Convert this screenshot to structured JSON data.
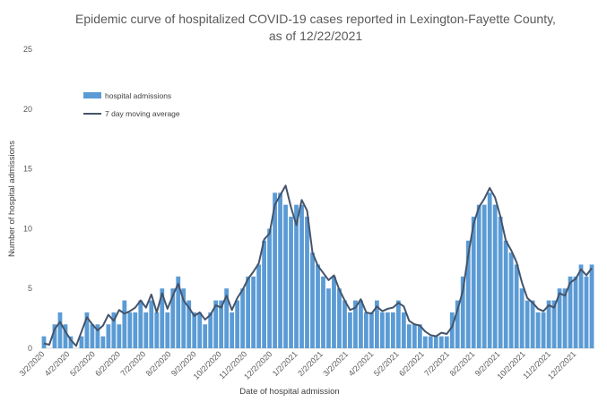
{
  "chart_data": {
    "type": "bar",
    "title_line1": "Epidemic curve of hospitalized COVID-19 cases reported in Lexington-Fayette County,",
    "title_line2": "as of 12/22/2021",
    "xlabel": "Date of hospital admission",
    "ylabel": "Number of hospital admissions",
    "ylim": [
      0,
      25
    ],
    "yticks": [
      "0",
      "5",
      "10",
      "15",
      "20",
      "25"
    ],
    "x_tick_labels": [
      "3/2/2020",
      "4/2/2020",
      "5/2/2020",
      "6/2/2020",
      "7/2/2020",
      "8/2/2020",
      "9/2/2020",
      "10/2/2020",
      "11/2/2020",
      "12/2/2020",
      "1/2/2021",
      "2/2/2021",
      "3/2/2021",
      "4/2/2021",
      "5/2/2021",
      "6/2/2021",
      "7/2/2021",
      "8/2/2021",
      "9/2/2021",
      "10/2/2021",
      "11/2/2021",
      "12/2/2021"
    ],
    "legend_placement": "upper-left",
    "colors": {
      "bars": "#5b9bd5",
      "line": "#44546a",
      "text": "#595959"
    },
    "series": [
      {
        "name": "hospital admissions",
        "type": "bar",
        "period": "weekly",
        "values": [
          1,
          0,
          2,
          3,
          2,
          1,
          0,
          1,
          3,
          2,
          2,
          1,
          2,
          3,
          2,
          4,
          3,
          3,
          4,
          3,
          4,
          3,
          5,
          3,
          5,
          6,
          5,
          4,
          3,
          3,
          2,
          3,
          4,
          4,
          5,
          3,
          4,
          5,
          6,
          6,
          7,
          9,
          10,
          13,
          13,
          12,
          11,
          12,
          12,
          11,
          8,
          7,
          6,
          5,
          6,
          5,
          4,
          3,
          4,
          4,
          3,
          3,
          4,
          3,
          3,
          3,
          4,
          3,
          2,
          2,
          2,
          1,
          1,
          1,
          1,
          1,
          3,
          4,
          6,
          9,
          11,
          12,
          12,
          13,
          12,
          11,
          9,
          8,
          7,
          5,
          4,
          4,
          3,
          3,
          4,
          4,
          5,
          5,
          6,
          6,
          7,
          6,
          7
        ]
      },
      {
        "name": "7 day moving average",
        "type": "line",
        "values": [
          0.4,
          0.3,
          1.6,
          2.2,
          1.4,
          0.7,
          0.2,
          1.4,
          2.6,
          2.0,
          1.5,
          1.9,
          2.8,
          2.3,
          3.2,
          2.9,
          3.1,
          3.4,
          4.0,
          3.4,
          4.5,
          3.0,
          4.6,
          3.3,
          4.4,
          5.4,
          4.0,
          3.4,
          2.7,
          3.0,
          2.4,
          2.8,
          3.6,
          3.4,
          4.4,
          3.2,
          4.2,
          4.9,
          5.8,
          6.4,
          7.1,
          9.1,
          9.6,
          12.0,
          12.8,
          13.6,
          11.8,
          10.3,
          12.4,
          11.5,
          8.0,
          6.9,
          6.3,
          5.7,
          6.1,
          4.9,
          4.0,
          3.2,
          3.4,
          4.1,
          3.0,
          2.9,
          3.5,
          3.1,
          3.3,
          3.4,
          3.8,
          3.5,
          2.3,
          2.0,
          1.9,
          1.4,
          1.1,
          1.0,
          1.3,
          1.2,
          1.8,
          3.2,
          4.8,
          7.8,
          10.4,
          11.8,
          12.5,
          13.4,
          12.6,
          11.0,
          9.0,
          8.2,
          7.2,
          5.5,
          4.2,
          3.8,
          3.3,
          3.1,
          3.6,
          3.4,
          4.6,
          4.4,
          5.5,
          5.8,
          6.6,
          6.1,
          6.7
        ]
      }
    ]
  }
}
